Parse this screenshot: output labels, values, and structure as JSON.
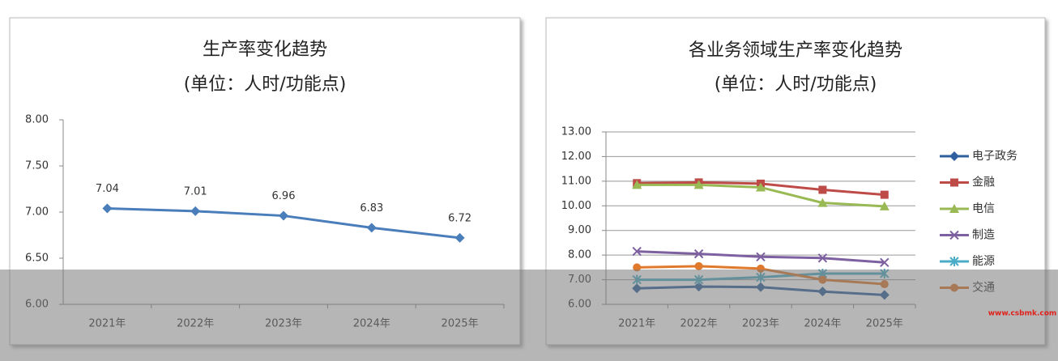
{
  "chart_data": [
    {
      "type": "line",
      "title": "生产率变化趋势",
      "subtitle": "(单位：人时/功能点)",
      "categories": [
        "2021年",
        "2022年",
        "2023年",
        "2024年",
        "2025年"
      ],
      "values": [
        7.04,
        7.01,
        6.96,
        6.83,
        6.72
      ],
      "color": "#4a7ebb",
      "marker": "diamond",
      "show_values": true,
      "grid": false,
      "ylim": [
        6,
        8
      ],
      "yticks": [
        {
          "value": 6,
          "label": "6.00"
        },
        {
          "value": 6.5,
          "label": "6.50"
        },
        {
          "value": 7,
          "label": "7.00"
        },
        {
          "value": 7.5,
          "label": "7.50"
        },
        {
          "value": 8,
          "label": "8.00"
        }
      ]
    },
    {
      "type": "line",
      "title": "各业务领域生产率变化趋势",
      "subtitle": "(单位：人时/功能点)",
      "categories": [
        "2021年",
        "2022年",
        "2023年",
        "2024年",
        "2025年"
      ],
      "series": [
        {
          "name": "电子政务",
          "color": "#2e5f9e",
          "marker": "diamond",
          "values": [
            6.65,
            6.72,
            6.7,
            6.52,
            6.38
          ]
        },
        {
          "name": "金融",
          "color": "#be4b48",
          "marker": "square",
          "values": [
            10.92,
            10.95,
            10.9,
            10.65,
            10.45
          ]
        },
        {
          "name": "电信",
          "color": "#98b954",
          "marker": "triangle",
          "values": [
            10.85,
            10.85,
            10.75,
            10.12,
            9.98
          ]
        },
        {
          "name": "制造",
          "color": "#7d60a0",
          "marker": "x",
          "values": [
            8.15,
            8.05,
            7.93,
            7.88,
            7.7
          ]
        },
        {
          "name": "能源",
          "color": "#4aacc6",
          "marker": "star",
          "values": [
            7.0,
            7.0,
            7.1,
            7.25,
            7.25
          ]
        },
        {
          "name": "交通",
          "color": "#e0792b",
          "marker": "circle",
          "values": [
            7.5,
            7.55,
            7.45,
            7.0,
            6.82
          ]
        }
      ],
      "grid": true,
      "legend": "right",
      "ylim": [
        6,
        13
      ],
      "yticks": [
        {
          "value": 6,
          "label": "6.00"
        },
        {
          "value": 7,
          "label": "7.00"
        },
        {
          "value": 8,
          "label": "8.00"
        },
        {
          "value": 9,
          "label": "9.00"
        },
        {
          "value": 10,
          "label": "10.00"
        },
        {
          "value": 11,
          "label": "11.00"
        },
        {
          "value": 12,
          "label": "12.00"
        },
        {
          "value": 13,
          "label": "13.00"
        }
      ]
    }
  ],
  "watermark": "www.csbmk.com"
}
